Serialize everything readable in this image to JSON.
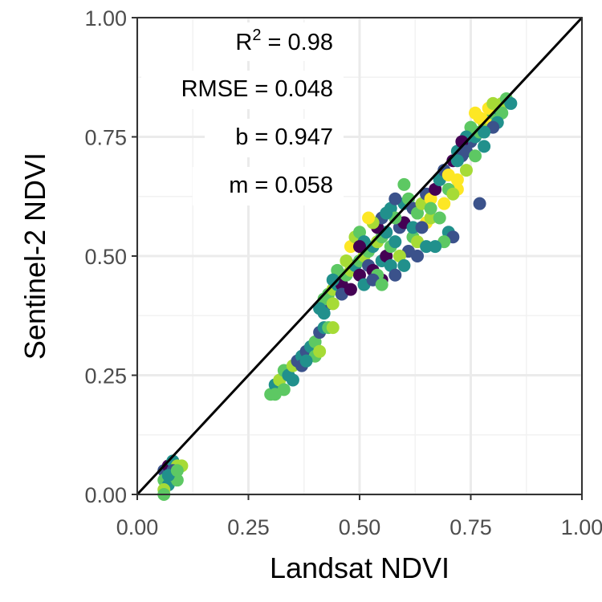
{
  "chart_data": {
    "type": "scatter",
    "title": "",
    "xlabel": "Landsat NDVI",
    "ylabel": "Sentinel-2 NDVI",
    "xlim": [
      0,
      1
    ],
    "ylim": [
      0,
      1
    ],
    "x_ticks": [
      "0.00",
      "0.25",
      "0.50",
      "0.75",
      "1.00"
    ],
    "y_ticks": [
      "0.00",
      "0.25",
      "0.50",
      "0.75",
      "1.00"
    ],
    "grid": true,
    "legend": "none",
    "annotations": {
      "r2_base": "R",
      "r2_sup": "2",
      "r2_value": " = 0.98",
      "rmse": "RMSE = 0.048",
      "b": "b = 0.947",
      "m": "m = 0.058"
    },
    "reference_line": {
      "x": [
        0,
        1
      ],
      "y": [
        0,
        1
      ],
      "color": "#000000"
    },
    "palette": [
      "#440154",
      "#3b528b",
      "#21908c",
      "#5dc863",
      "#a6db36",
      "#fde725"
    ],
    "points": [
      [
        0.06,
        0.05,
        1
      ],
      [
        0.07,
        0.06,
        0
      ],
      [
        0.08,
        0.07,
        2
      ],
      [
        0.09,
        0.06,
        4
      ],
      [
        0.06,
        0.03,
        3
      ],
      [
        0.07,
        0.02,
        2
      ],
      [
        0.08,
        0.04,
        5
      ],
      [
        0.09,
        0.03,
        3
      ],
      [
        0.06,
        0.01,
        4
      ],
      [
        0.08,
        0.05,
        1
      ],
      [
        0.1,
        0.06,
        4
      ],
      [
        0.07,
        0.04,
        2
      ],
      [
        0.09,
        0.05,
        3
      ],
      [
        0.06,
        0.0,
        3
      ],
      [
        0.3,
        0.21,
        3
      ],
      [
        0.31,
        0.23,
        2
      ],
      [
        0.32,
        0.24,
        4
      ],
      [
        0.33,
        0.26,
        3
      ],
      [
        0.34,
        0.25,
        2
      ],
      [
        0.35,
        0.27,
        4
      ],
      [
        0.36,
        0.28,
        1
      ],
      [
        0.37,
        0.29,
        2
      ],
      [
        0.38,
        0.3,
        1
      ],
      [
        0.39,
        0.31,
        2
      ],
      [
        0.4,
        0.32,
        3
      ],
      [
        0.41,
        0.34,
        1
      ],
      [
        0.42,
        0.35,
        2
      ],
      [
        0.4,
        0.29,
        3
      ],
      [
        0.43,
        0.35,
        3
      ],
      [
        0.44,
        0.35,
        4
      ],
      [
        0.41,
        0.3,
        4
      ],
      [
        0.37,
        0.27,
        1
      ],
      [
        0.35,
        0.24,
        2
      ],
      [
        0.33,
        0.22,
        3
      ],
      [
        0.38,
        0.28,
        2
      ],
      [
        0.31,
        0.21,
        3
      ],
      [
        0.43,
        0.42,
        3
      ],
      [
        0.44,
        0.43,
        4
      ],
      [
        0.45,
        0.44,
        2
      ],
      [
        0.46,
        0.44,
        0
      ],
      [
        0.47,
        0.46,
        3
      ],
      [
        0.48,
        0.47,
        4
      ],
      [
        0.49,
        0.48,
        2
      ],
      [
        0.5,
        0.49,
        3
      ],
      [
        0.51,
        0.5,
        4
      ],
      [
        0.52,
        0.51,
        3
      ],
      [
        0.53,
        0.52,
        2
      ],
      [
        0.54,
        0.53,
        4
      ],
      [
        0.55,
        0.54,
        3
      ],
      [
        0.56,
        0.55,
        2
      ],
      [
        0.5,
        0.46,
        0
      ],
      [
        0.52,
        0.48,
        1
      ],
      [
        0.53,
        0.47,
        0
      ],
      [
        0.55,
        0.49,
        2
      ],
      [
        0.56,
        0.5,
        0
      ],
      [
        0.57,
        0.52,
        3
      ],
      [
        0.58,
        0.53,
        2
      ],
      [
        0.59,
        0.56,
        1
      ],
      [
        0.6,
        0.57,
        0
      ],
      [
        0.48,
        0.52,
        5
      ],
      [
        0.49,
        0.54,
        4
      ],
      [
        0.5,
        0.55,
        3
      ],
      [
        0.51,
        0.53,
        2
      ],
      [
        0.54,
        0.56,
        0
      ],
      [
        0.55,
        0.58,
        1
      ],
      [
        0.57,
        0.6,
        2
      ],
      [
        0.58,
        0.58,
        3
      ],
      [
        0.6,
        0.61,
        2
      ],
      [
        0.61,
        0.62,
        3
      ],
      [
        0.62,
        0.6,
        1
      ],
      [
        0.63,
        0.59,
        3
      ],
      [
        0.64,
        0.61,
        4
      ],
      [
        0.65,
        0.63,
        1
      ],
      [
        0.66,
        0.62,
        5
      ],
      [
        0.67,
        0.64,
        0
      ],
      [
        0.68,
        0.66,
        2
      ],
      [
        0.69,
        0.68,
        1
      ],
      [
        0.7,
        0.67,
        5
      ],
      [
        0.71,
        0.7,
        0
      ],
      [
        0.72,
        0.72,
        2
      ],
      [
        0.73,
        0.71,
        1
      ],
      [
        0.65,
        0.57,
        5
      ],
      [
        0.66,
        0.58,
        4
      ],
      [
        0.68,
        0.58,
        3
      ],
      [
        0.7,
        0.55,
        2
      ],
      [
        0.71,
        0.54,
        1
      ],
      [
        0.69,
        0.53,
        3
      ],
      [
        0.67,
        0.52,
        2
      ],
      [
        0.62,
        0.54,
        3
      ],
      [
        0.63,
        0.53,
        4
      ],
      [
        0.61,
        0.51,
        1
      ],
      [
        0.59,
        0.5,
        4
      ],
      [
        0.57,
        0.48,
        2
      ],
      [
        0.55,
        0.45,
        0
      ],
      [
        0.54,
        0.46,
        3
      ],
      [
        0.62,
        0.56,
        2
      ],
      [
        0.64,
        0.56,
        1
      ],
      [
        0.66,
        0.6,
        3
      ],
      [
        0.69,
        0.61,
        5
      ],
      [
        0.72,
        0.64,
        5
      ],
      [
        0.7,
        0.64,
        3
      ],
      [
        0.75,
        0.74,
        1
      ],
      [
        0.76,
        0.75,
        2
      ],
      [
        0.77,
        0.76,
        3
      ],
      [
        0.78,
        0.78,
        4
      ],
      [
        0.79,
        0.79,
        5
      ],
      [
        0.8,
        0.8,
        3
      ],
      [
        0.81,
        0.81,
        2
      ],
      [
        0.82,
        0.82,
        4
      ],
      [
        0.83,
        0.83,
        3
      ],
      [
        0.84,
        0.82,
        2
      ],
      [
        0.82,
        0.8,
        3
      ],
      [
        0.81,
        0.78,
        2
      ],
      [
        0.8,
        0.77,
        1
      ],
      [
        0.78,
        0.76,
        2
      ],
      [
        0.77,
        0.79,
        5
      ],
      [
        0.79,
        0.81,
        5
      ],
      [
        0.8,
        0.82,
        4
      ],
      [
        0.76,
        0.8,
        5
      ],
      [
        0.75,
        0.77,
        3
      ],
      [
        0.74,
        0.75,
        2
      ],
      [
        0.73,
        0.74,
        0
      ],
      [
        0.74,
        0.72,
        1
      ],
      [
        0.72,
        0.7,
        2
      ],
      [
        0.76,
        0.71,
        3
      ],
      [
        0.78,
        0.73,
        2
      ],
      [
        0.77,
        0.61,
        1
      ],
      [
        0.72,
        0.66,
        5
      ],
      [
        0.71,
        0.63,
        4
      ],
      [
        0.74,
        0.68,
        4
      ],
      [
        0.6,
        0.65,
        3
      ],
      [
        0.58,
        0.62,
        1
      ],
      [
        0.56,
        0.59,
        2
      ],
      [
        0.53,
        0.57,
        4
      ],
      [
        0.52,
        0.58,
        5
      ],
      [
        0.5,
        0.52,
        0
      ],
      [
        0.47,
        0.49,
        4
      ],
      [
        0.45,
        0.47,
        3
      ],
      [
        0.44,
        0.45,
        2
      ],
      [
        0.43,
        0.4,
        1
      ],
      [
        0.42,
        0.38,
        2
      ],
      [
        0.42,
        0.41,
        3
      ],
      [
        0.41,
        0.39,
        2
      ],
      [
        0.44,
        0.4,
        4
      ],
      [
        0.46,
        0.42,
        1
      ],
      [
        0.48,
        0.43,
        0
      ],
      [
        0.51,
        0.44,
        2
      ],
      [
        0.53,
        0.45,
        1
      ],
      [
        0.55,
        0.44,
        3
      ],
      [
        0.58,
        0.46,
        1
      ],
      [
        0.6,
        0.48,
        2
      ],
      [
        0.63,
        0.5,
        1
      ],
      [
        0.65,
        0.52,
        2
      ]
    ]
  }
}
